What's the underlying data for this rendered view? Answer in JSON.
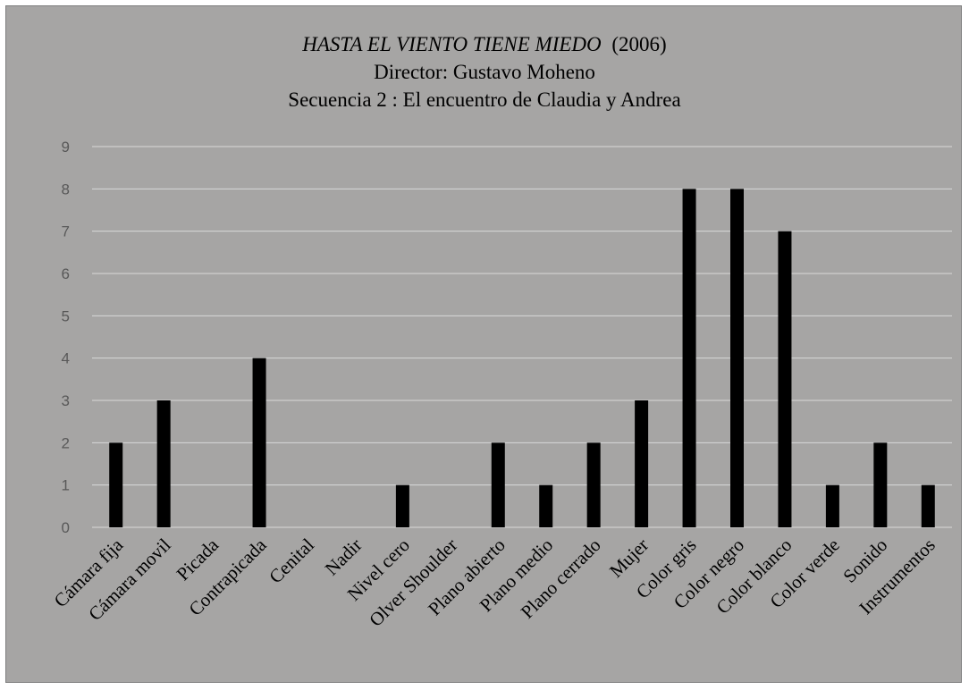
{
  "chart_data": {
    "type": "bar",
    "title": {
      "film": "HASTA EL VIENTO TIENE MIEDO",
      "year": "(2006)",
      "director": "Director: Gustavo Moheno",
      "sequence": "Secuencia 2 : El encuentro de Claudia y Andrea"
    },
    "categories": [
      "Cámara fija",
      "Cámara movil",
      "Picada",
      "Contrapicada",
      "Cenital",
      "Nadir",
      "Nivel cero",
      "Olver Shoulder",
      "Plano abierto",
      "Plano medio",
      "Plano cerrado",
      "Mujer",
      "Color gris",
      "Color negro",
      "Color blanco",
      "Color verde",
      "Sonido",
      "Instrumentos"
    ],
    "values": [
      2,
      3,
      0,
      4,
      0,
      0,
      1,
      0,
      2,
      1,
      2,
      3,
      8,
      8,
      7,
      1,
      2,
      1
    ],
    "ylim": [
      0,
      9
    ],
    "yticks": [
      0,
      1,
      2,
      3,
      4,
      5,
      6,
      7,
      8,
      9
    ],
    "grid": true,
    "colors": {
      "background": "#a6a5a4",
      "bar": "#000000",
      "grid": "#d9d9d9",
      "tick_label": "#595959"
    }
  }
}
